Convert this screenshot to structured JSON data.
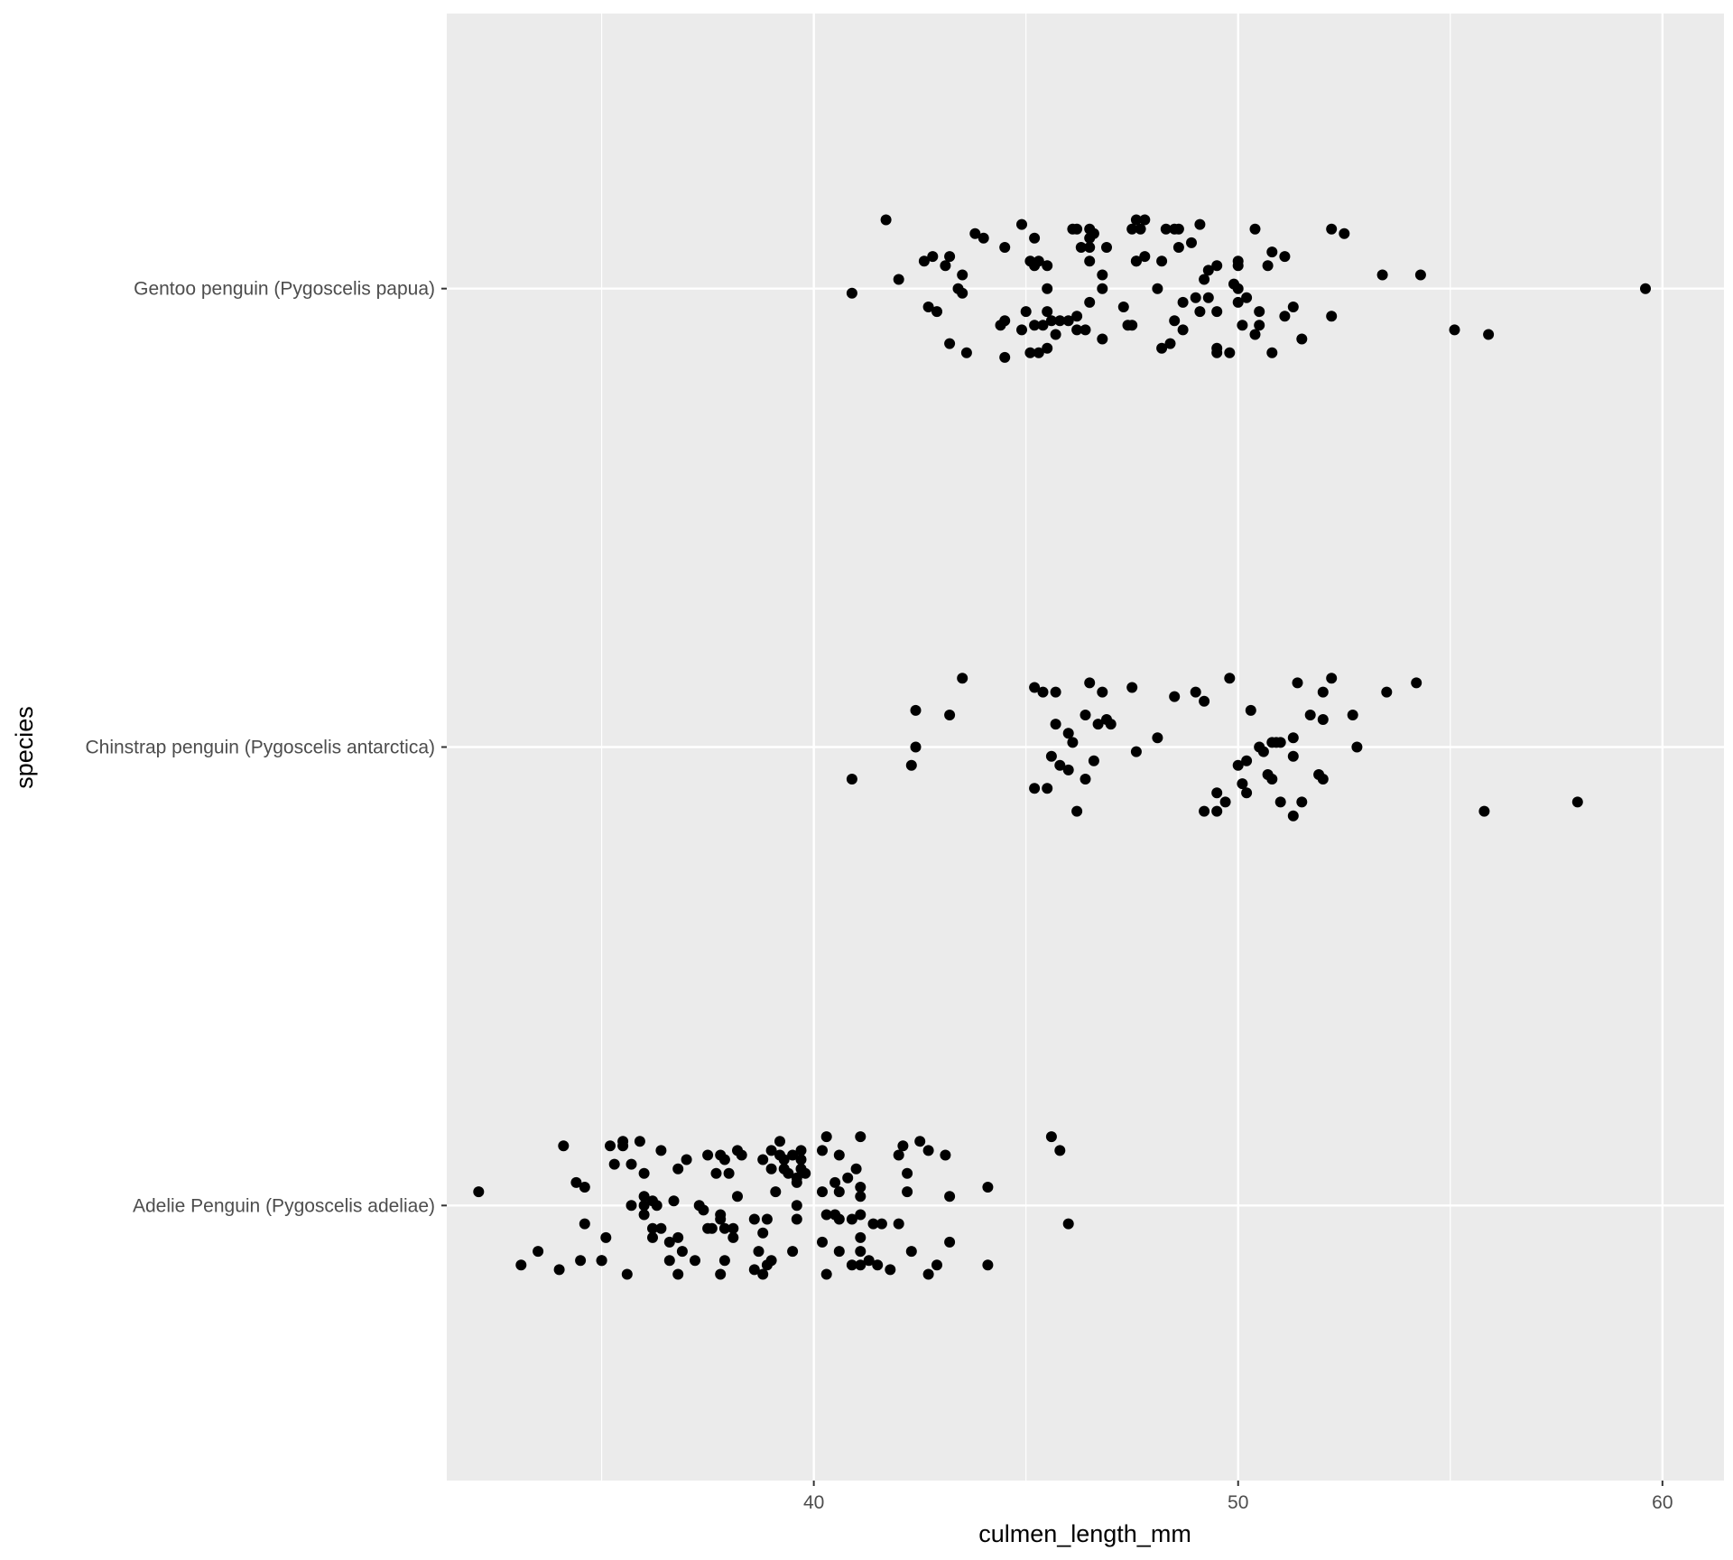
{
  "chart_data": {
    "type": "scatter",
    "title": "",
    "xlabel": "culmen_length_mm",
    "ylabel": "species",
    "xlim": [
      31.35,
      61.45
    ],
    "x_ticks": [
      40,
      50,
      60
    ],
    "x_minor_ticks": [
      35,
      45,
      55
    ],
    "categories": [
      "Adelie Penguin (Pygoscelis adeliae)",
      "Chinstrap penguin (Pygoscelis antarctica)",
      "Gentoo penguin (Pygoscelis papua)"
    ],
    "jitter": "vertical",
    "grid": true,
    "legend": "none",
    "colors": {
      "panel": "#ebebeb",
      "grid": "#ffffff",
      "point": "#000000",
      "tick_text": "#4d4d4d",
      "axis_text": "#000000"
    },
    "series": [
      {
        "category": "Gentoo penguin (Pygoscelis papua)",
        "points": [
          [
            41.7,
            0.15
          ],
          [
            40.9,
            -0.01
          ],
          [
            42.0,
            0.02
          ],
          [
            42.6,
            0.06
          ],
          [
            42.8,
            0.07
          ],
          [
            43.2,
            0.07
          ],
          [
            43.1,
            0.05
          ],
          [
            43.5,
            0.03
          ],
          [
            43.4,
            0.0
          ],
          [
            43.5,
            -0.01
          ],
          [
            42.7,
            -0.04
          ],
          [
            42.9,
            -0.05
          ],
          [
            43.2,
            -0.12
          ],
          [
            43.6,
            -0.14
          ],
          [
            43.8,
            0.12
          ],
          [
            44.0,
            0.11
          ],
          [
            44.5,
            0.09
          ],
          [
            44.9,
            0.14
          ],
          [
            45.2,
            0.11
          ],
          [
            45.1,
            0.06
          ],
          [
            45.3,
            0.06
          ],
          [
            45.5,
            0.05
          ],
          [
            45.2,
            0.05
          ],
          [
            45.5,
            0.0
          ],
          [
            44.5,
            -0.07
          ],
          [
            44.4,
            -0.08
          ],
          [
            45.0,
            -0.05
          ],
          [
            45.2,
            -0.08
          ],
          [
            45.4,
            -0.08
          ],
          [
            45.5,
            -0.05
          ],
          [
            45.6,
            -0.07
          ],
          [
            45.8,
            -0.07
          ],
          [
            44.9,
            -0.09
          ],
          [
            45.7,
            -0.1
          ],
          [
            44.5,
            -0.15
          ],
          [
            45.1,
            -0.14
          ],
          [
            45.3,
            -0.14
          ],
          [
            45.5,
            -0.13
          ],
          [
            46.1,
            0.13
          ],
          [
            46.2,
            0.13
          ],
          [
            46.5,
            0.13
          ],
          [
            46.6,
            0.12
          ],
          [
            46.5,
            0.11
          ],
          [
            46.3,
            0.09
          ],
          [
            46.5,
            0.09
          ],
          [
            46.9,
            0.09
          ],
          [
            46.5,
            0.06
          ],
          [
            46.8,
            0.03
          ],
          [
            46.8,
            0.0
          ],
          [
            46.5,
            -0.03
          ],
          [
            46.2,
            -0.06
          ],
          [
            46.0,
            -0.07
          ],
          [
            46.2,
            -0.09
          ],
          [
            46.4,
            -0.09
          ],
          [
            46.8,
            -0.11
          ],
          [
            47.3,
            -0.04
          ],
          [
            47.4,
            -0.08
          ],
          [
            47.5,
            -0.08
          ],
          [
            47.5,
            0.13
          ],
          [
            47.8,
            0.15
          ],
          [
            47.6,
            0.15
          ],
          [
            47.7,
            0.13
          ],
          [
            47.6,
            0.06
          ],
          [
            47.8,
            0.07
          ],
          [
            47.6,
            0.06
          ],
          [
            48.3,
            0.13
          ],
          [
            48.5,
            0.13
          ],
          [
            48.6,
            0.13
          ],
          [
            48.2,
            0.06
          ],
          [
            48.6,
            0.09
          ],
          [
            48.9,
            0.1
          ],
          [
            49.1,
            0.14
          ],
          [
            48.1,
            0.0
          ],
          [
            48.7,
            -0.03
          ],
          [
            48.5,
            -0.07
          ],
          [
            48.7,
            -0.09
          ],
          [
            48.2,
            -0.13
          ],
          [
            48.4,
            -0.12
          ],
          [
            49.0,
            -0.02
          ],
          [
            49.1,
            -0.05
          ],
          [
            49.3,
            0.04
          ],
          [
            49.2,
            0.02
          ],
          [
            49.5,
            0.05
          ],
          [
            49.3,
            -0.02
          ],
          [
            49.5,
            -0.05
          ],
          [
            49.9,
            0.01
          ],
          [
            50.0,
            0.06
          ],
          [
            50.0,
            0.05
          ],
          [
            50.0,
            0.0
          ],
          [
            50.0,
            -0.03
          ],
          [
            50.2,
            -0.02
          ],
          [
            50.1,
            -0.08
          ],
          [
            49.5,
            -0.13
          ],
          [
            49.5,
            -0.14
          ],
          [
            49.8,
            -0.14
          ],
          [
            50.4,
            0.13
          ],
          [
            50.5,
            -0.05
          ],
          [
            50.5,
            -0.08
          ],
          [
            50.4,
            -0.1
          ],
          [
            50.7,
            0.05
          ],
          [
            50.8,
            0.08
          ],
          [
            51.1,
            0.07
          ],
          [
            51.3,
            -0.04
          ],
          [
            51.1,
            -0.06
          ],
          [
            51.5,
            -0.11
          ],
          [
            50.8,
            -0.14
          ],
          [
            52.2,
            -0.06
          ],
          [
            52.2,
            0.13
          ],
          [
            52.5,
            0.12
          ],
          [
            53.4,
            0.03
          ],
          [
            54.3,
            0.03
          ],
          [
            55.1,
            -0.09
          ],
          [
            55.9,
            -0.1
          ],
          [
            59.6,
            0.0
          ]
        ]
      },
      {
        "category": "Chinstrap penguin (Pygoscelis antarctica)",
        "points": [
          [
            40.9,
            -0.07
          ],
          [
            42.4,
            0.08
          ],
          [
            42.4,
            0.0
          ],
          [
            42.3,
            -0.04
          ],
          [
            43.2,
            0.07
          ],
          [
            43.5,
            0.15
          ],
          [
            45.2,
            0.13
          ],
          [
            45.4,
            0.12
          ],
          [
            45.7,
            0.12
          ],
          [
            45.2,
            -0.09
          ],
          [
            45.5,
            -0.09
          ],
          [
            45.7,
            0.05
          ],
          [
            46.0,
            0.03
          ],
          [
            46.1,
            0.01
          ],
          [
            45.8,
            -0.04
          ],
          [
            46.0,
            -0.05
          ],
          [
            45.6,
            -0.02
          ],
          [
            46.2,
            -0.14
          ],
          [
            46.4,
            0.07
          ],
          [
            46.5,
            0.14
          ],
          [
            46.8,
            0.12
          ],
          [
            46.7,
            0.05
          ],
          [
            46.9,
            0.06
          ],
          [
            47.0,
            0.05
          ],
          [
            46.6,
            -0.03
          ],
          [
            46.4,
            -0.07
          ],
          [
            47.5,
            0.13
          ],
          [
            47.6,
            -0.01
          ],
          [
            48.1,
            0.02
          ],
          [
            48.5,
            0.11
          ],
          [
            49.0,
            0.12
          ],
          [
            49.2,
            0.1
          ],
          [
            49.8,
            0.15
          ],
          [
            50.3,
            0.08
          ],
          [
            50.5,
            0.0
          ],
          [
            50.6,
            -0.01
          ],
          [
            50.8,
            0.01
          ],
          [
            50.9,
            0.01
          ],
          [
            51.0,
            0.01
          ],
          [
            50.2,
            -0.03
          ],
          [
            50.0,
            -0.04
          ],
          [
            50.1,
            -0.08
          ],
          [
            50.2,
            -0.1
          ],
          [
            50.7,
            -0.06
          ],
          [
            50.8,
            -0.07
          ],
          [
            51.3,
            -0.02
          ],
          [
            51.3,
            0.02
          ],
          [
            51.4,
            0.14
          ],
          [
            51.7,
            0.07
          ],
          [
            52.0,
            0.12
          ],
          [
            52.0,
            0.06
          ],
          [
            52.2,
            0.15
          ],
          [
            51.9,
            -0.06
          ],
          [
            52.0,
            -0.07
          ],
          [
            51.5,
            -0.12
          ],
          [
            51.0,
            -0.12
          ],
          [
            51.3,
            -0.15
          ],
          [
            49.5,
            -0.1
          ],
          [
            49.7,
            -0.12
          ],
          [
            49.5,
            -0.14
          ],
          [
            49.2,
            -0.14
          ],
          [
            52.7,
            0.07
          ],
          [
            52.8,
            0.0
          ],
          [
            53.5,
            0.12
          ],
          [
            54.2,
            0.14
          ],
          [
            55.8,
            -0.14
          ],
          [
            58.0,
            -0.12
          ]
        ]
      },
      {
        "category": "Adelie Penguin (Pygoscelis adeliae)",
        "points": [
          [
            32.1,
            0.03
          ],
          [
            33.1,
            -0.13
          ],
          [
            33.5,
            -0.1
          ],
          [
            34.0,
            -0.14
          ],
          [
            34.1,
            0.13
          ],
          [
            34.4,
            0.05
          ],
          [
            34.6,
            0.04
          ],
          [
            34.6,
            -0.04
          ],
          [
            34.5,
            -0.12
          ],
          [
            35.1,
            -0.07
          ],
          [
            35.0,
            -0.12
          ],
          [
            35.0,
            -0.12
          ],
          [
            35.2,
            0.13
          ],
          [
            35.3,
            0.09
          ],
          [
            35.5,
            0.13
          ],
          [
            35.5,
            0.14
          ],
          [
            35.6,
            -0.15
          ],
          [
            35.7,
            0.0
          ],
          [
            35.7,
            0.09
          ],
          [
            35.9,
            0.14
          ],
          [
            36.0,
            0.07
          ],
          [
            36.0,
            0.02
          ],
          [
            36.2,
            0.01
          ],
          [
            36.0,
            0.0
          ],
          [
            36.0,
            -0.02
          ],
          [
            36.2,
            -0.05
          ],
          [
            36.3,
            0.0
          ],
          [
            36.2,
            -0.07
          ],
          [
            36.4,
            -0.05
          ],
          [
            36.6,
            -0.08
          ],
          [
            36.4,
            0.12
          ],
          [
            36.7,
            0.01
          ],
          [
            36.8,
            0.08
          ],
          [
            36.6,
            -0.12
          ],
          [
            36.8,
            -0.15
          ],
          [
            36.9,
            -0.1
          ],
          [
            36.8,
            -0.07
          ],
          [
            37.0,
            0.1
          ],
          [
            37.3,
            0.0
          ],
          [
            37.2,
            -0.12
          ],
          [
            37.4,
            -0.01
          ],
          [
            37.5,
            -0.05
          ],
          [
            37.6,
            -0.05
          ],
          [
            37.5,
            0.11
          ],
          [
            37.8,
            0.11
          ],
          [
            37.7,
            0.07
          ],
          [
            37.8,
            -0.02
          ],
          [
            37.8,
            -0.03
          ],
          [
            37.9,
            -0.05
          ],
          [
            37.9,
            0.1
          ],
          [
            38.0,
            0.07
          ],
          [
            37.9,
            -0.12
          ],
          [
            37.8,
            -0.15
          ],
          [
            38.1,
            -0.05
          ],
          [
            38.1,
            -0.07
          ],
          [
            38.2,
            0.12
          ],
          [
            38.3,
            0.11
          ],
          [
            38.2,
            0.02
          ],
          [
            38.6,
            -0.03
          ],
          [
            38.6,
            -0.14
          ],
          [
            38.7,
            -0.1
          ],
          [
            38.8,
            0.1
          ],
          [
            38.8,
            -0.06
          ],
          [
            38.9,
            -0.13
          ],
          [
            38.8,
            -0.15
          ],
          [
            38.9,
            -0.03
          ],
          [
            39.0,
            0.12
          ],
          [
            39.0,
            0.08
          ],
          [
            39.1,
            0.03
          ],
          [
            39.0,
            -0.12
          ],
          [
            39.2,
            0.14
          ],
          [
            39.2,
            0.11
          ],
          [
            39.3,
            0.1
          ],
          [
            39.3,
            0.08
          ],
          [
            39.4,
            0.07
          ],
          [
            39.6,
            0.06
          ],
          [
            39.5,
            0.11
          ],
          [
            39.7,
            0.12
          ],
          [
            39.6,
            0.05
          ],
          [
            39.7,
            0.1
          ],
          [
            39.6,
            0.0
          ],
          [
            39.7,
            0.08
          ],
          [
            39.8,
            0.07
          ],
          [
            39.6,
            -0.03
          ],
          [
            39.5,
            -0.1
          ],
          [
            40.2,
            0.12
          ],
          [
            40.3,
            0.15
          ],
          [
            40.2,
            0.03
          ],
          [
            40.3,
            -0.02
          ],
          [
            40.6,
            0.11
          ],
          [
            40.5,
            0.05
          ],
          [
            40.6,
            0.03
          ],
          [
            40.5,
            -0.02
          ],
          [
            40.6,
            -0.03
          ],
          [
            40.2,
            -0.08
          ],
          [
            40.6,
            -0.1
          ],
          [
            40.3,
            -0.15
          ],
          [
            40.8,
            0.06
          ],
          [
            40.9,
            -0.03
          ],
          [
            40.9,
            -0.13
          ],
          [
            41.0,
            0.08
          ],
          [
            41.1,
            0.15
          ],
          [
            41.1,
            0.04
          ],
          [
            41.1,
            0.02
          ],
          [
            41.1,
            -0.02
          ],
          [
            41.1,
            -0.07
          ],
          [
            41.1,
            -0.1
          ],
          [
            41.1,
            -0.13
          ],
          [
            41.3,
            -0.12
          ],
          [
            41.4,
            -0.04
          ],
          [
            41.5,
            -0.13
          ],
          [
            41.6,
            -0.04
          ],
          [
            41.8,
            -0.14
          ],
          [
            42.0,
            -0.04
          ],
          [
            42.0,
            0.11
          ],
          [
            42.1,
            0.13
          ],
          [
            42.2,
            0.07
          ],
          [
            42.2,
            0.03
          ],
          [
            42.3,
            -0.1
          ],
          [
            42.5,
            0.14
          ],
          [
            42.7,
            0.12
          ],
          [
            42.9,
            -0.13
          ],
          [
            42.7,
            -0.15
          ],
          [
            43.1,
            0.11
          ],
          [
            43.2,
            0.02
          ],
          [
            43.2,
            -0.08
          ],
          [
            44.1,
            0.04
          ],
          [
            44.1,
            -0.13
          ],
          [
            45.6,
            0.15
          ],
          [
            45.8,
            0.12
          ],
          [
            46.0,
            -0.04
          ]
        ]
      }
    ]
  }
}
